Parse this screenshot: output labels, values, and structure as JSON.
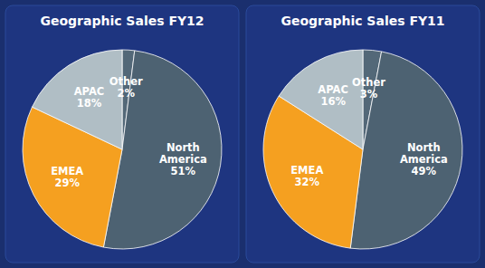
{
  "chart_data": [
    {
      "type": "pie",
      "title": "Geographic Sales FY12",
      "categories": [
        "Other",
        "North\nAmerica",
        "EMEA",
        "APAC"
      ],
      "values": [
        2,
        51,
        29,
        18
      ],
      "value_labels": [
        "2%",
        "51%",
        "29%",
        "18%"
      ],
      "colors": [
        "#536878",
        "#4d6272",
        "#f5a020",
        "#b0bec5"
      ],
      "data_labels": true
    },
    {
      "type": "pie",
      "title": "Geographic Sales FY11",
      "categories": [
        "Other",
        "North\nAmerica",
        "EMEA",
        "APAC"
      ],
      "values": [
        3,
        49,
        32,
        16
      ],
      "value_labels": [
        "3%",
        "49%",
        "32%",
        "16%"
      ],
      "colors": [
        "#536878",
        "#4d6272",
        "#f5a020",
        "#b0bec5"
      ],
      "data_labels": true
    }
  ]
}
